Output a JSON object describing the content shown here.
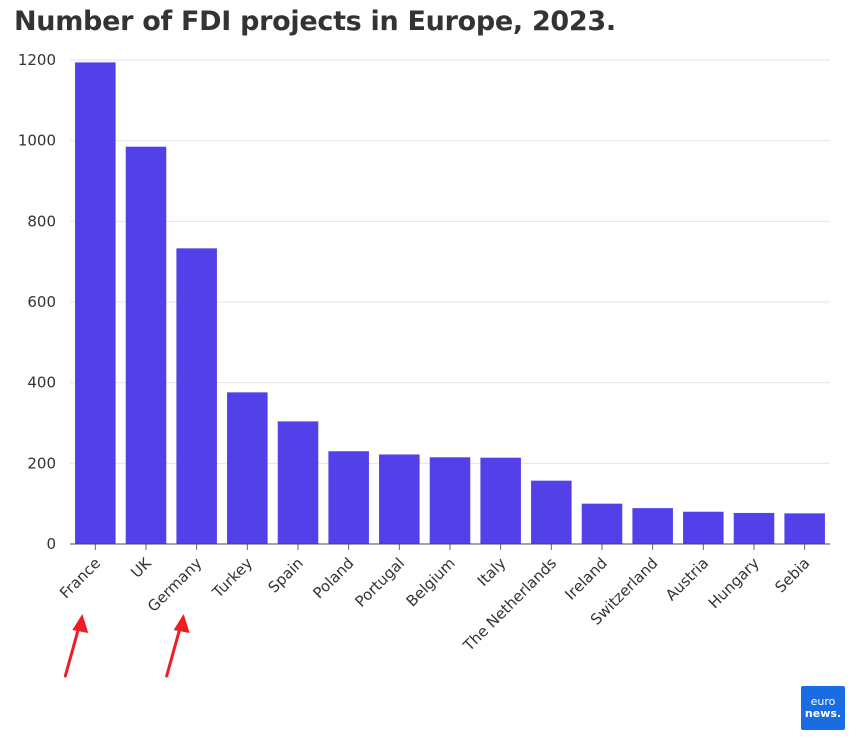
{
  "chart_data": {
    "type": "bar",
    "title": "Number of FDI projects in Europe, 2023.",
    "xlabel": "",
    "ylabel": "",
    "categories": [
      "France",
      "UK",
      "Germany",
      "Turkey",
      "Spain",
      "Poland",
      "Portugal",
      "Belgium",
      "Italy",
      "The Netherlands",
      "Ireland",
      "Switzerland",
      "Austria",
      "Hungary",
      "Sebia"
    ],
    "values": [
      1194,
      985,
      733,
      376,
      304,
      230,
      222,
      215,
      214,
      157,
      100,
      89,
      80,
      77,
      76
    ],
    "ylim": [
      0,
      1200
    ],
    "yticks": [
      0,
      200,
      400,
      600,
      800,
      1000,
      1200
    ],
    "grid": true,
    "bar_color": "#5340e8",
    "annotations": [
      {
        "type": "arrow",
        "target": "France",
        "color": "#ee1c25"
      },
      {
        "type": "arrow",
        "target": "Germany",
        "color": "#ee1c25"
      }
    ]
  },
  "logo": {
    "line1": "euro",
    "line2": "news.",
    "bg": "#1a6de0"
  }
}
